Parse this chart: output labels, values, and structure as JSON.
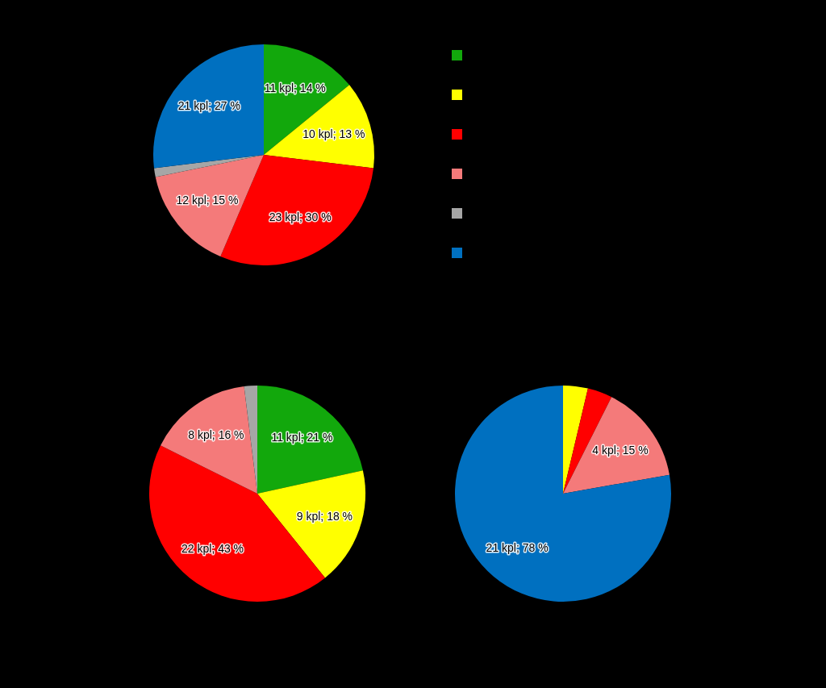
{
  "chart_data": [
    {
      "type": "pie",
      "categories": [
        null,
        null,
        null,
        null,
        null,
        null
      ],
      "values": [
        11,
        10,
        23,
        12,
        1,
        21
      ],
      "colors": [
        "#12a80c",
        "#ffff00",
        "#ff0000",
        "#f47a7a",
        "#a6a6a6",
        "#0070c0"
      ],
      "value_labels": [
        "11 kpl; 14 %",
        "10 kpl; 13 %",
        "23 kpl; 30 %",
        "12 kpl; 15 %",
        null,
        "21 kpl; 27 %"
      ]
    },
    {
      "type": "pie",
      "categories": [
        null,
        null,
        null,
        null,
        null
      ],
      "values": [
        11,
        9,
        22,
        8,
        1
      ],
      "colors": [
        "#12a80c",
        "#ffff00",
        "#ff0000",
        "#f47a7a",
        "#a6a6a6"
      ],
      "value_labels": [
        "11 kpl; 21 %",
        "9 kpl; 18 %",
        "22 kpl; 43 %",
        "8 kpl; 16 %",
        null
      ]
    },
    {
      "type": "pie",
      "categories": [
        null,
        null,
        null,
        null
      ],
      "values": [
        1,
        1,
        4,
        21
      ],
      "colors": [
        "#ffff00",
        "#ff0000",
        "#f47a7a",
        "#0070c0"
      ],
      "value_labels": [
        null,
        null,
        "4 kpl; 15 %",
        "21 kpl; 78 %"
      ]
    }
  ]
}
